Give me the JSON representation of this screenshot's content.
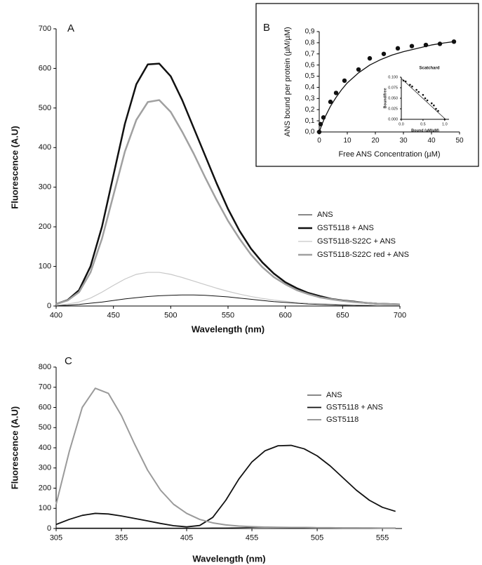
{
  "chart_data": [
    {
      "type": "line",
      "panel_label": "A",
      "xlabel": "Wavelength (nm)",
      "ylabel": "Fluorescence (A.U)",
      "x": [
        400,
        410,
        420,
        430,
        440,
        450,
        460,
        470,
        480,
        490,
        500,
        510,
        520,
        530,
        540,
        550,
        560,
        570,
        580,
        590,
        600,
        610,
        620,
        630,
        640,
        650,
        660,
        670,
        680,
        690,
        700
      ],
      "xlim": [
        400,
        700
      ],
      "xticks": [
        400,
        450,
        500,
        550,
        600,
        650,
        700
      ],
      "ylim": [
        0,
        700
      ],
      "yticks": [
        0,
        100,
        200,
        300,
        400,
        500,
        600,
        700
      ],
      "legend": "center right",
      "series": [
        {
          "name": "ANS",
          "color": "#111111",
          "line_width": 1,
          "values": [
            1,
            2,
            4,
            7,
            10,
            14,
            18,
            21,
            24,
            26,
            27,
            28,
            28,
            27,
            25,
            23,
            20,
            17,
            14,
            11,
            9,
            7,
            5,
            4,
            3,
            2,
            2,
            1,
            1,
            1,
            1
          ]
        },
        {
          "name": "GST5118 + ANS",
          "color": "#111111",
          "line_width": 2.5,
          "values": [
            5,
            15,
            40,
            100,
            200,
            330,
            460,
            560,
            610,
            612,
            580,
            520,
            450,
            380,
            310,
            245,
            190,
            145,
            110,
            82,
            60,
            45,
            33,
            25,
            18,
            14,
            11,
            8,
            6,
            5,
            4
          ]
        },
        {
          "name": "GST5118-S22C + ANS",
          "color": "#c8c8c8",
          "line_width": 1.2,
          "values": [
            2,
            5,
            10,
            20,
            35,
            52,
            68,
            80,
            85,
            85,
            80,
            72,
            63,
            54,
            45,
            37,
            30,
            24,
            19,
            15,
            12,
            9,
            7,
            6,
            5,
            4,
            3,
            3,
            2,
            2,
            2
          ]
        },
        {
          "name": "GST5118-S22C red + ANS",
          "color": "#a0a0a0",
          "line_width": 2.5,
          "values": [
            5,
            14,
            35,
            85,
            170,
            280,
            390,
            470,
            515,
            520,
            490,
            440,
            385,
            325,
            268,
            215,
            170,
            130,
            98,
            73,
            55,
            40,
            30,
            22,
            17,
            13,
            10,
            8,
            6,
            5,
            4
          ]
        }
      ]
    },
    {
      "type": "scatter",
      "panel_label": "B",
      "xlabel": "Free ANS Concentration (µM)",
      "ylabel": "ANS bound per protein (µM/µM)",
      "xlim": [
        0,
        50
      ],
      "xticks": [
        0,
        10,
        20,
        30,
        40,
        50
      ],
      "ylim": [
        0,
        0.9
      ],
      "yticks": [
        {
          "value": 0,
          "label": "0,0"
        },
        {
          "value": 0.1,
          "label": "0,1"
        },
        {
          "value": 0.2,
          "label": "0,2"
        },
        {
          "value": 0.3,
          "label": "0,3"
        },
        {
          "value": 0.4,
          "label": "0,4"
        },
        {
          "value": 0.5,
          "label": "0,5"
        },
        {
          "value": 0.6,
          "label": "0,6"
        },
        {
          "value": 0.7,
          "label": "0,7"
        },
        {
          "value": 0.8,
          "label": "0,8"
        },
        {
          "value": 0.9,
          "label": "0,9"
        }
      ],
      "points": {
        "color": "#111111",
        "x": [
          0,
          0.5,
          1.5,
          4,
          6,
          9,
          14,
          18,
          23,
          28,
          33,
          38,
          43,
          48
        ],
        "values": [
          0,
          0.07,
          0.13,
          0.27,
          0.35,
          0.46,
          0.56,
          0.66,
          0.7,
          0.75,
          0.77,
          0.78,
          0.79,
          0.81
        ]
      },
      "fit": {
        "color": "#111111",
        "x": [
          0,
          1,
          2,
          4,
          6,
          8,
          10,
          14,
          18,
          22,
          26,
          30,
          35,
          40,
          45,
          48
        ],
        "values": [
          0,
          0.07,
          0.13,
          0.23,
          0.31,
          0.38,
          0.44,
          0.53,
          0.6,
          0.65,
          0.69,
          0.72,
          0.75,
          0.78,
          0.8,
          0.81
        ]
      }
    },
    {
      "type": "scatter",
      "title": "Scatchard",
      "xlabel": "Bound (µM/µM)",
      "ylabel": "Bound/free",
      "xlim": [
        0,
        1.1
      ],
      "xticks": [
        {
          "value": 0,
          "label": "0.0"
        },
        {
          "value": 0.5,
          "label": "0.5"
        },
        {
          "value": 1,
          "label": "1.0"
        }
      ],
      "ylim": [
        0,
        0.1
      ],
      "yticks": [
        {
          "value": 0,
          "label": "0.000"
        },
        {
          "value": 0.025,
          "label": "0.025"
        },
        {
          "value": 0.05,
          "label": "0.050"
        },
        {
          "value": 0.075,
          "label": "0.075"
        },
        {
          "value": 0.1,
          "label": "0.100"
        }
      ],
      "points": {
        "color": "#111111",
        "x": [
          0.05,
          0.1,
          0.2,
          0.25,
          0.35,
          0.4,
          0.5,
          0.55,
          0.6,
          0.7,
          0.75,
          0.8,
          0.85,
          1.0
        ],
        "values": [
          0.092,
          0.09,
          0.082,
          0.078,
          0.07,
          0.065,
          0.058,
          0.05,
          0.045,
          0.038,
          0.033,
          0.025,
          0.02,
          0
        ]
      },
      "fit": {
        "color": "#111111",
        "x": [
          0,
          1.02
        ],
        "values": [
          0.097,
          0
        ]
      }
    },
    {
      "type": "line",
      "panel_label": "C",
      "xlabel": "Wavelength (nm)",
      "ylabel": "Fluorescence (A.U)",
      "x": [
        305,
        315,
        325,
        335,
        345,
        355,
        365,
        375,
        385,
        395,
        405,
        415,
        425,
        435,
        445,
        455,
        465,
        475,
        485,
        495,
        505,
        515,
        525,
        535,
        545,
        555,
        565
      ],
      "xlim": [
        305,
        570
      ],
      "xticks": [
        305,
        355,
        405,
        455,
        505,
        555
      ],
      "ylim": [
        0,
        800
      ],
      "yticks": [
        0,
        100,
        200,
        300,
        400,
        500,
        600,
        700,
        800
      ],
      "legend": "upper right",
      "series": [
        {
          "name": "ANS",
          "color": "#111111",
          "line_width": 1,
          "values": [
            2,
            2,
            2,
            2,
            2,
            2,
            2,
            2,
            2,
            2,
            2,
            2,
            3,
            3,
            4,
            5,
            6,
            6,
            6,
            6,
            5,
            5,
            4,
            4,
            3,
            3,
            3
          ]
        },
        {
          "name": "GST5118 + ANS",
          "color": "#111111",
          "line_width": 1.8,
          "values": [
            20,
            45,
            65,
            75,
            72,
            62,
            50,
            38,
            25,
            14,
            8,
            15,
            55,
            140,
            245,
            330,
            385,
            410,
            412,
            395,
            360,
            310,
            250,
            190,
            140,
            105,
            85
          ]
        },
        {
          "name": "GST5118",
          "color": "#9a9a9a",
          "line_width": 2,
          "values": [
            120,
            380,
            600,
            695,
            670,
            560,
            420,
            290,
            190,
            120,
            75,
            45,
            28,
            18,
            12,
            9,
            7,
            6,
            5,
            5,
            4,
            4,
            3,
            3,
            3,
            2,
            2
          ]
        }
      ]
    }
  ]
}
